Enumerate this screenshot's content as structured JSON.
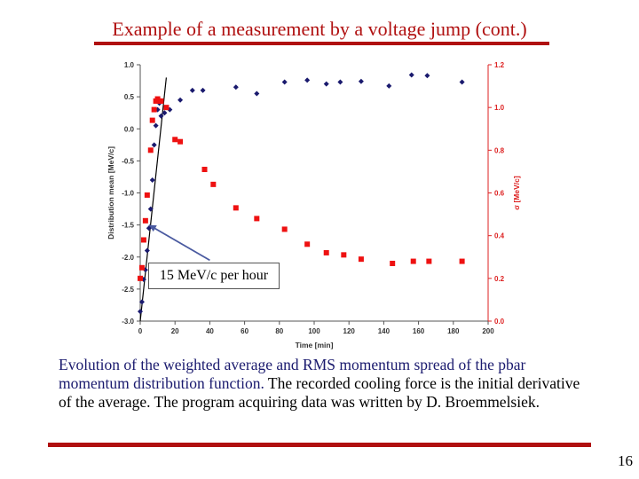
{
  "slide": {
    "title": "Example of a measurement by a voltage jump (cont.)",
    "caption_part1": "Evolution of the weighted average and RMS momentum spread of the pbar momentum distribution function.",
    "caption_part2": " The recorded cooling force is the initial derivative of the average. The program acquiring data was written by D. Broemmelsiek.",
    "page_number": "16",
    "accent_color": "#b01010"
  },
  "chart_data": {
    "type": "scatter",
    "title": "",
    "xlabel": "Time [min]",
    "ylabel_left": "Distribution mean [MeV/c]",
    "ylabel_right": "σ [MeV/c]",
    "xlim": [
      0,
      200
    ],
    "ylim_left": [
      -3.0,
      1.0
    ],
    "ylim_right": [
      0.0,
      1.2
    ],
    "x_ticks": [
      "0",
      "20",
      "40",
      "60",
      "80",
      "100",
      "120",
      "140",
      "160",
      "180",
      "200"
    ],
    "y_ticks_left": [
      "1.0",
      "0.5",
      "0.0",
      "-0.5",
      "-1.0",
      "-1.5",
      "-2.0",
      "-2.5",
      "-3.0"
    ],
    "y_ticks_right": [
      "1.2",
      "1.0",
      "0.8",
      "0.6",
      "0.4",
      "0.2",
      "0.0"
    ],
    "annotation": "15 MeV/c per hour",
    "series": [
      {
        "name": "Distribution mean",
        "axis": "left",
        "marker": "diamond",
        "color": "#1a1a6e",
        "x": [
          0,
          1,
          2,
          3,
          4,
          5,
          6,
          7,
          8,
          9,
          10,
          11,
          12,
          14,
          17,
          23,
          30,
          36,
          55,
          67,
          83,
          96,
          107,
          115,
          127,
          143,
          156,
          165,
          185
        ],
        "y": [
          -2.85,
          -2.7,
          -2.35,
          -2.2,
          -1.9,
          -1.55,
          -1.25,
          -0.8,
          -0.25,
          0.05,
          0.3,
          0.4,
          0.2,
          0.25,
          0.3,
          0.45,
          0.6,
          0.6,
          0.65,
          0.55,
          0.73,
          0.76,
          0.7,
          0.73,
          0.74,
          0.67,
          0.84,
          0.83,
          0.73
        ]
      },
      {
        "name": "RMS spread σ",
        "axis": "right",
        "marker": "square",
        "color": "#ee1111",
        "x": [
          0,
          1,
          2,
          3,
          4,
          6,
          7,
          8,
          9,
          10,
          11,
          12,
          15,
          20,
          23,
          37,
          42,
          55,
          67,
          83,
          96,
          107,
          117,
          127,
          145,
          157,
          166,
          185
        ],
        "y": [
          0.2,
          0.25,
          0.38,
          0.47,
          0.59,
          0.8,
          0.94,
          0.99,
          1.03,
          1.04,
          1.03,
          1.03,
          1.0,
          0.85,
          0.84,
          0.71,
          0.64,
          0.53,
          0.48,
          0.43,
          0.36,
          0.32,
          0.31,
          0.29,
          0.27,
          0.28,
          0.28,
          0.28
        ]
      }
    ],
    "fit_line": {
      "x": [
        0,
        15
      ],
      "y": [
        -3.0,
        0.8
      ]
    },
    "arrow": {
      "from": [
        40,
        -2.05
      ],
      "to": [
        5,
        -1.5
      ]
    }
  }
}
